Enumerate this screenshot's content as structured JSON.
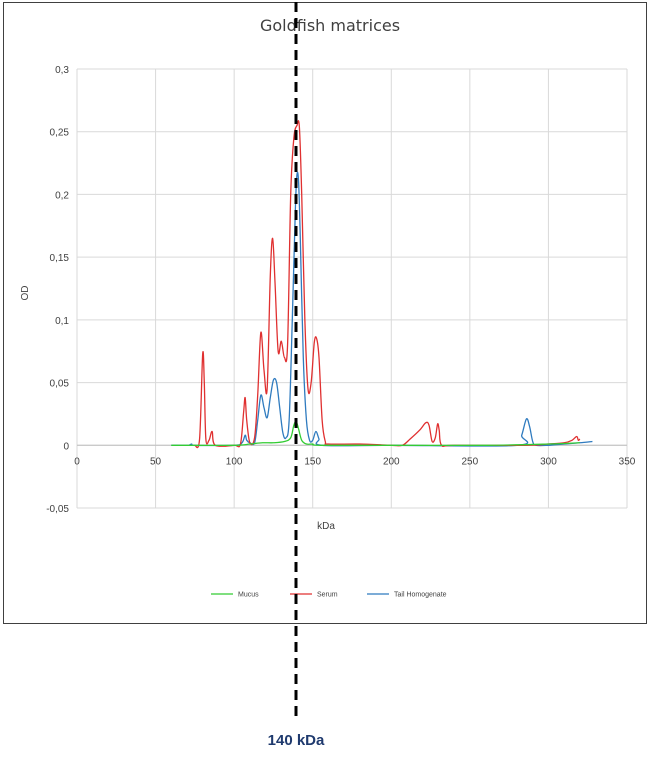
{
  "chart_data": {
    "type": "line",
    "title": "Goldfish matrices",
    "xlabel": "kDa",
    "ylabel": "OD",
    "xlim": [
      0,
      350
    ],
    "ylim": [
      -0.05,
      0.3
    ],
    "x_ticks": [
      "0",
      "50",
      "100",
      "150",
      "200",
      "250",
      "300",
      "350"
    ],
    "y_ticks": [
      "-0,05",
      "0",
      "0,05",
      "0,1",
      "0,15",
      "0,2",
      "0,25",
      "0,3"
    ],
    "grid": true,
    "legend_position": "bottom",
    "series": [
      {
        "name": "Mucus",
        "color": "#33cc33",
        "points": [
          [
            60,
            0
          ],
          [
            100,
            0
          ],
          [
            110,
            0.001
          ],
          [
            118,
            0.002
          ],
          [
            125,
            0.002
          ],
          [
            132,
            0.003
          ],
          [
            136,
            0.006
          ],
          [
            138,
            0.016
          ],
          [
            139.5,
            0.019
          ],
          [
            141,
            0.013
          ],
          [
            143,
            0.004
          ],
          [
            146,
            0.001
          ],
          [
            150,
            0.001
          ],
          [
            155,
            0
          ],
          [
            200,
            0
          ],
          [
            260,
            0
          ],
          [
            300,
            0.001
          ],
          [
            320,
            0.002
          ]
        ]
      },
      {
        "name": "Serum",
        "color": "#e03030",
        "points": [
          [
            75,
            0
          ],
          [
            78,
            0.005
          ],
          [
            80,
            0.073
          ],
          [
            81,
            0.05
          ],
          [
            82,
            0.005
          ],
          [
            84,
            0.004
          ],
          [
            86,
            0.011
          ],
          [
            88,
            0
          ],
          [
            100,
            0
          ],
          [
            104,
            0.001
          ],
          [
            106,
            0.026
          ],
          [
            107,
            0.038
          ],
          [
            108,
            0.02
          ],
          [
            110,
            0.002
          ],
          [
            113,
            0.006
          ],
          [
            115,
            0.04
          ],
          [
            117,
            0.09
          ],
          [
            119,
            0.06
          ],
          [
            121,
            0.045
          ],
          [
            123,
            0.135
          ],
          [
            124.5,
            0.165
          ],
          [
            126,
            0.13
          ],
          [
            128,
            0.075
          ],
          [
            130,
            0.083
          ],
          [
            132,
            0.07
          ],
          [
            134,
            0.08
          ],
          [
            136,
            0.2
          ],
          [
            138,
            0.245
          ],
          [
            140,
            0.255
          ],
          [
            141.5,
            0.254
          ],
          [
            143,
            0.2
          ],
          [
            145,
            0.1
          ],
          [
            147,
            0.045
          ],
          [
            149,
            0.05
          ],
          [
            151,
            0.082
          ],
          [
            152.5,
            0.085
          ],
          [
            154,
            0.07
          ],
          [
            156,
            0.02
          ],
          [
            158,
            0.003
          ],
          [
            160,
            0.001
          ],
          [
            180,
            0.001
          ],
          [
            200,
            0
          ],
          [
            207,
            0
          ],
          [
            212,
            0.005
          ],
          [
            218,
            0.012
          ],
          [
            222,
            0.018
          ],
          [
            224,
            0.016
          ],
          [
            226,
            0.003
          ],
          [
            228,
            0.006
          ],
          [
            229.5,
            0.017
          ],
          [
            230.5,
            0.012
          ],
          [
            232,
            0
          ],
          [
            240,
            0
          ],
          [
            285,
            0
          ],
          [
            300,
            0.001
          ],
          [
            310,
            0.002
          ],
          [
            315,
            0.004
          ],
          [
            318,
            0.007
          ],
          [
            319,
            0.004
          ],
          [
            320,
            0.005
          ]
        ]
      },
      {
        "name": "Tail Homogenate",
        "color": "#2f7bbf",
        "points": [
          [
            60,
            0
          ],
          [
            72,
            0
          ],
          [
            73,
            0.001
          ],
          [
            74,
            0
          ],
          [
            100,
            0
          ],
          [
            105,
            0.002
          ],
          [
            107,
            0.008
          ],
          [
            108,
            0.004
          ],
          [
            110,
            0.002
          ],
          [
            113,
            0.002
          ],
          [
            115,
            0.02
          ],
          [
            117,
            0.04
          ],
          [
            119,
            0.03
          ],
          [
            121,
            0.022
          ],
          [
            123,
            0.038
          ],
          [
            125,
            0.052
          ],
          [
            127,
            0.05
          ],
          [
            129,
            0.03
          ],
          [
            131,
            0.01
          ],
          [
            133,
            0.006
          ],
          [
            135,
            0.02
          ],
          [
            137,
            0.1
          ],
          [
            139,
            0.19
          ],
          [
            140,
            0.216
          ],
          [
            141,
            0.21
          ],
          [
            142,
            0.17
          ],
          [
            144,
            0.07
          ],
          [
            146,
            0.02
          ],
          [
            148,
            0.004
          ],
          [
            150,
            0.004
          ],
          [
            152,
            0.011
          ],
          [
            154,
            0.005
          ],
          [
            156,
            0
          ],
          [
            200,
            0
          ],
          [
            280,
            0
          ],
          [
            283,
            0.008
          ],
          [
            286,
            0.021
          ],
          [
            288,
            0.015
          ],
          [
            290,
            0.003
          ],
          [
            292,
            0
          ],
          [
            300,
            0
          ],
          [
            310,
            0.001
          ],
          [
            320,
            0.002
          ],
          [
            328,
            0.003
          ]
        ]
      }
    ]
  },
  "annotation": {
    "label": "140 kDa",
    "x": 140
  }
}
